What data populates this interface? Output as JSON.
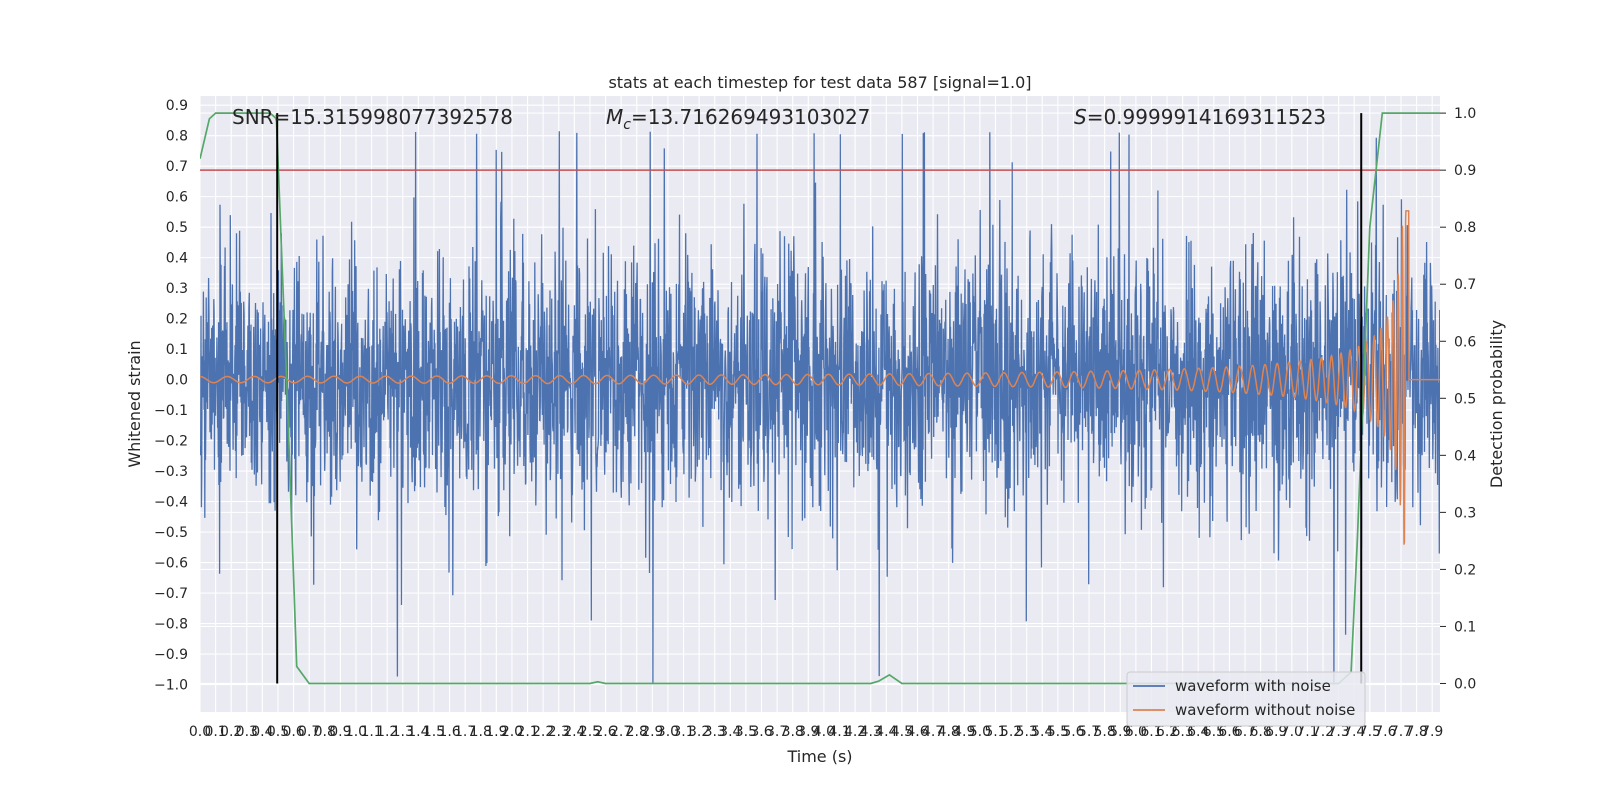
{
  "chart_data": {
    "type": "line",
    "title": "stats at each timestep for test data 587 [signal=1.0]",
    "xlabel": "Time (s)",
    "ylabel": "Whitened strain",
    "y2label": "Detection probability",
    "xlim": [
      0.0,
      7.95
    ],
    "ylim": [
      -1.09,
      0.93
    ],
    "y2lim": [
      -0.05,
      1.03
    ],
    "x_ticks": [
      0.0,
      0.1,
      0.2,
      0.3,
      0.4,
      0.5,
      0.6,
      0.7,
      0.8,
      0.9,
      1.0,
      1.1,
      1.2,
      1.3,
      1.4,
      1.5,
      1.6,
      1.7,
      1.8,
      1.9,
      2.0,
      2.1,
      2.2,
      2.3,
      2.4,
      2.5,
      2.6,
      2.7,
      2.8,
      2.9,
      3.0,
      3.1,
      3.2,
      3.3,
      3.4,
      3.5,
      3.6,
      3.7,
      3.8,
      3.9,
      4.0,
      4.1,
      4.2,
      4.3,
      4.4,
      4.5,
      4.6,
      4.7,
      4.8,
      4.9,
      5.0,
      5.1,
      5.2,
      5.3,
      5.4,
      5.5,
      5.6,
      5.7,
      5.8,
      5.9,
      6.0,
      6.1,
      6.2,
      6.3,
      6.4,
      6.5,
      6.6,
      6.7,
      6.8,
      6.9,
      7.0,
      7.1,
      7.2,
      7.3,
      7.4,
      7.5,
      7.6,
      7.7,
      7.8,
      7.9
    ],
    "y_ticks": [
      0.9,
      0.8,
      0.7,
      0.6,
      0.5,
      0.4,
      0.3,
      0.2,
      0.1,
      0.0,
      -0.1,
      -0.2,
      -0.3,
      -0.4,
      -0.5,
      -0.6,
      -0.7,
      -0.8,
      -0.9,
      -1.0
    ],
    "y2_ticks": [
      1.0,
      0.9,
      0.8,
      0.7,
      0.6,
      0.5,
      0.4,
      0.3,
      0.2,
      0.1,
      0.0
    ],
    "annotations": {
      "snr": "SNR=15.315998077392578",
      "mc_symbol": "M",
      "mc_sub": "c",
      "mc_value": "=13.716269493103027",
      "s_symbol": "S",
      "s_value": "=0.9999914169311523"
    },
    "series": [
      {
        "name": "waveform with noise",
        "color": "#4c72b0",
        "kind": "noise",
        "typical_envelope": [
          -0.45,
          0.47
        ],
        "peak_max": 0.81,
        "peak_min": -1.0
      },
      {
        "name": "waveform without noise",
        "color": "#dd8452",
        "kind": "chirp",
        "x_start": 0.0,
        "x_merger": 7.75,
        "amp_start": 0.01,
        "amp_peak": 0.56,
        "amp_min_peak": -0.56
      },
      {
        "name": "detection probability",
        "color": "#55a868",
        "axis": "right",
        "x": [
          0.0,
          0.06,
          0.1,
          0.45,
          0.49,
          0.56,
          0.62,
          0.7,
          1.0,
          2.0,
          2.5,
          2.55,
          2.6,
          2.8,
          3.5,
          4.3,
          4.35,
          4.42,
          4.5,
          5.0,
          6.0,
          7.0,
          7.3,
          7.38,
          7.42,
          7.5,
          7.58,
          7.62,
          8.0
        ],
        "y": [
          0.92,
          0.99,
          1.0,
          1.0,
          0.99,
          0.5,
          0.03,
          0.0,
          0.0,
          0.0,
          0.0,
          0.003,
          0.0,
          0.0,
          0.0,
          0.0,
          0.004,
          0.015,
          0.0,
          0.0,
          0.0,
          0.0,
          0.0,
          0.02,
          0.25,
          0.8,
          1.0,
          1.0,
          1.0
        ]
      },
      {
        "name": "threshold",
        "color": "#c44e52",
        "axis": "right",
        "kind": "hline",
        "y": 0.9
      }
    ],
    "vlines": [
      {
        "x": 0.495,
        "color": "#000000"
      },
      {
        "x": 7.445,
        "color": "#000000"
      }
    ],
    "legend": {
      "placement": "lower-right",
      "entries": [
        "waveform with noise",
        "waveform without noise"
      ]
    },
    "grid": true
  }
}
